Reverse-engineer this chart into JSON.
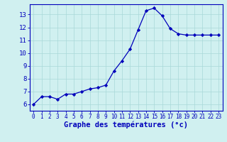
{
  "x": [
    0,
    1,
    2,
    3,
    4,
    5,
    6,
    7,
    8,
    9,
    10,
    11,
    12,
    13,
    14,
    15,
    16,
    17,
    18,
    19,
    20,
    21,
    22,
    23
  ],
  "y": [
    6.0,
    6.6,
    6.6,
    6.4,
    6.8,
    6.8,
    7.0,
    7.2,
    7.3,
    7.5,
    8.6,
    9.4,
    10.3,
    11.8,
    13.3,
    13.5,
    12.9,
    11.9,
    11.5,
    11.4,
    11.4,
    11.4,
    11.4,
    11.4
  ],
  "xlabel": "Graphe des températures (°c)",
  "ylim": [
    5.5,
    13.8
  ],
  "xlim": [
    -0.5,
    23.5
  ],
  "yticks": [
    6,
    7,
    8,
    9,
    10,
    11,
    12,
    13
  ],
  "xticks": [
    0,
    1,
    2,
    3,
    4,
    5,
    6,
    7,
    8,
    9,
    10,
    11,
    12,
    13,
    14,
    15,
    16,
    17,
    18,
    19,
    20,
    21,
    22,
    23
  ],
  "line_color": "#0000bb",
  "marker": "D",
  "marker_size": 2.2,
  "bg_color": "#d0f0f0",
  "grid_color": "#a8d8d8",
  "axis_label_color": "#0000bb",
  "tick_label_color": "#0000bb",
  "xlabel_fontsize": 7.5,
  "ytick_fontsize": 6.5,
  "xtick_fontsize": 5.5,
  "linewidth": 0.9
}
